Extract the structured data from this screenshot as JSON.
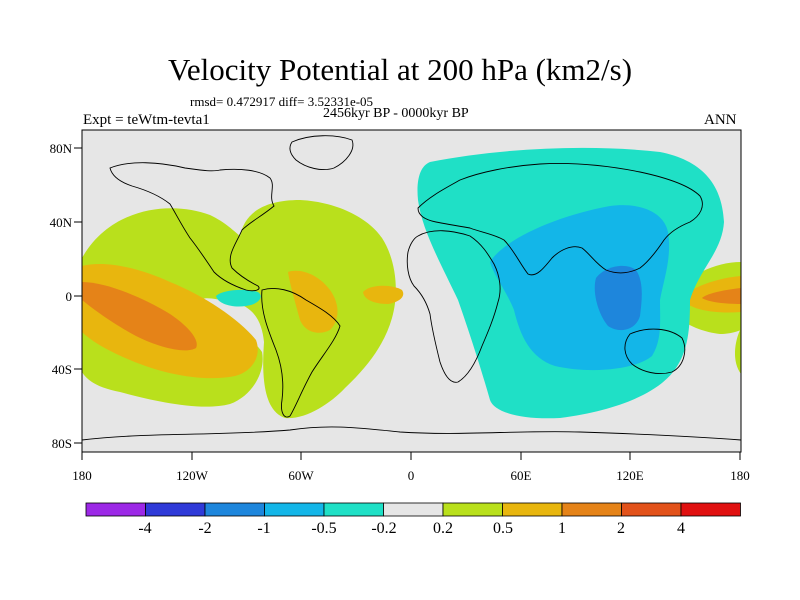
{
  "title": "Velocity Potential at 200 hPa (km2/s)",
  "stats": "rmsd= 0.472917 diff= 3.52331e-05",
  "period": "2456kyr BP - 0000kyr BP",
  "experiment": "Expt = teWtm-tevta1",
  "season": "ANN",
  "lat_ticks": [
    "80N",
    "40N",
    "0",
    "40S",
    "80S"
  ],
  "lon_ticks": [
    "180",
    "120W",
    "60W",
    "0",
    "60E",
    "120E",
    "180"
  ],
  "colorbar": {
    "labels": [
      "-4",
      "-2",
      "-1",
      "-0.5",
      "-0.2",
      "0.2",
      "0.5",
      "1",
      "2",
      "4"
    ],
    "colors": [
      "#9c28e6",
      "#2f3ad8",
      "#1e86dc",
      "#13b6e8",
      "#1fe0c6",
      "#e6e6e6",
      "#b9e01c",
      "#e8b60e",
      "#e58318",
      "#e2521a",
      "#e01010"
    ]
  },
  "palette": {
    "land_line": "#000000",
    "background": "#e6e6e6"
  }
}
